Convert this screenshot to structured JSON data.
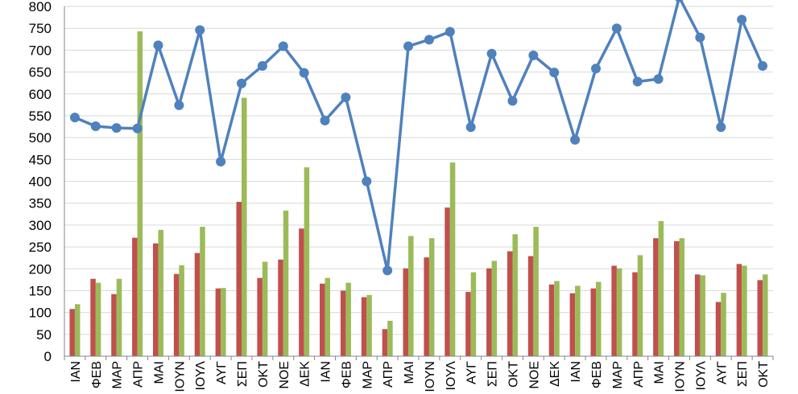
{
  "chart_data": {
    "type": "bar+line",
    "title": "",
    "xlabel": "",
    "ylabel": "",
    "ylim": [
      0,
      800
    ],
    "y_ticks": [
      0,
      50,
      100,
      150,
      200,
      250,
      300,
      350,
      400,
      450,
      500,
      550,
      600,
      650,
      700,
      750,
      800
    ],
    "grid": true,
    "legend": "none",
    "categories": [
      "ΙΑΝ",
      "ΦΕΒ",
      "ΜΑΡ",
      "ΑΠΡ",
      "ΜΑΙ",
      "ΙΟΥΝ",
      "ΙΟΥΛ",
      "ΑΥΓ",
      "ΣΕΠ",
      "ΟΚΤ",
      "ΝΟΕ",
      "ΔΕΚ",
      "ΙΑΝ",
      "ΦΕΒ",
      "ΜΑΡ",
      "ΑΠΡ",
      "ΜΑΙ",
      "ΙΟΥΝ",
      "ΙΟΥΛ",
      "ΑΥΓ",
      "ΣΕΠ",
      "ΟΚΤ",
      "ΝΟΕ",
      "ΔΕΚ",
      "ΙΑΝ",
      "ΦΕΒ",
      "ΜΑΡ",
      "ΑΠΡ",
      "ΜΑΙ",
      "ΙΟΥΝ",
      "ΙΟΥΛ",
      "ΑΥΓ",
      "ΣΕΠ",
      "ΟΚΤ"
    ],
    "series": [
      {
        "kind": "bar",
        "color": "#c0504d",
        "values": [
          108,
          177,
          142,
          271,
          258,
          188,
          236,
          155,
          353,
          179,
          221,
          292,
          166,
          150,
          135,
          62,
          201,
          226,
          340,
          147,
          201,
          240,
          229,
          164,
          144,
          155,
          207,
          192,
          270,
          263,
          187,
          124,
          211,
          174
        ]
      },
      {
        "kind": "bar",
        "color": "#9bbb59",
        "values": [
          119,
          168,
          177,
          743,
          289,
          208,
          296,
          156,
          591,
          216,
          333,
          432,
          179,
          168,
          140,
          81,
          275,
          270,
          443,
          192,
          218,
          279,
          296,
          172,
          161,
          170,
          201,
          231,
          309,
          270,
          185,
          145,
          207,
          187
        ]
      },
      {
        "kind": "line",
        "color": "#4f81bd",
        "values": [
          546,
          526,
          522,
          521,
          711,
          574,
          746,
          445,
          624,
          664,
          709,
          648,
          539,
          592,
          400,
          196,
          709,
          724,
          742,
          524,
          692,
          584,
          688,
          649,
          495,
          658,
          750,
          628,
          634,
          821,
          729,
          524,
          770,
          664
        ]
      }
    ]
  }
}
